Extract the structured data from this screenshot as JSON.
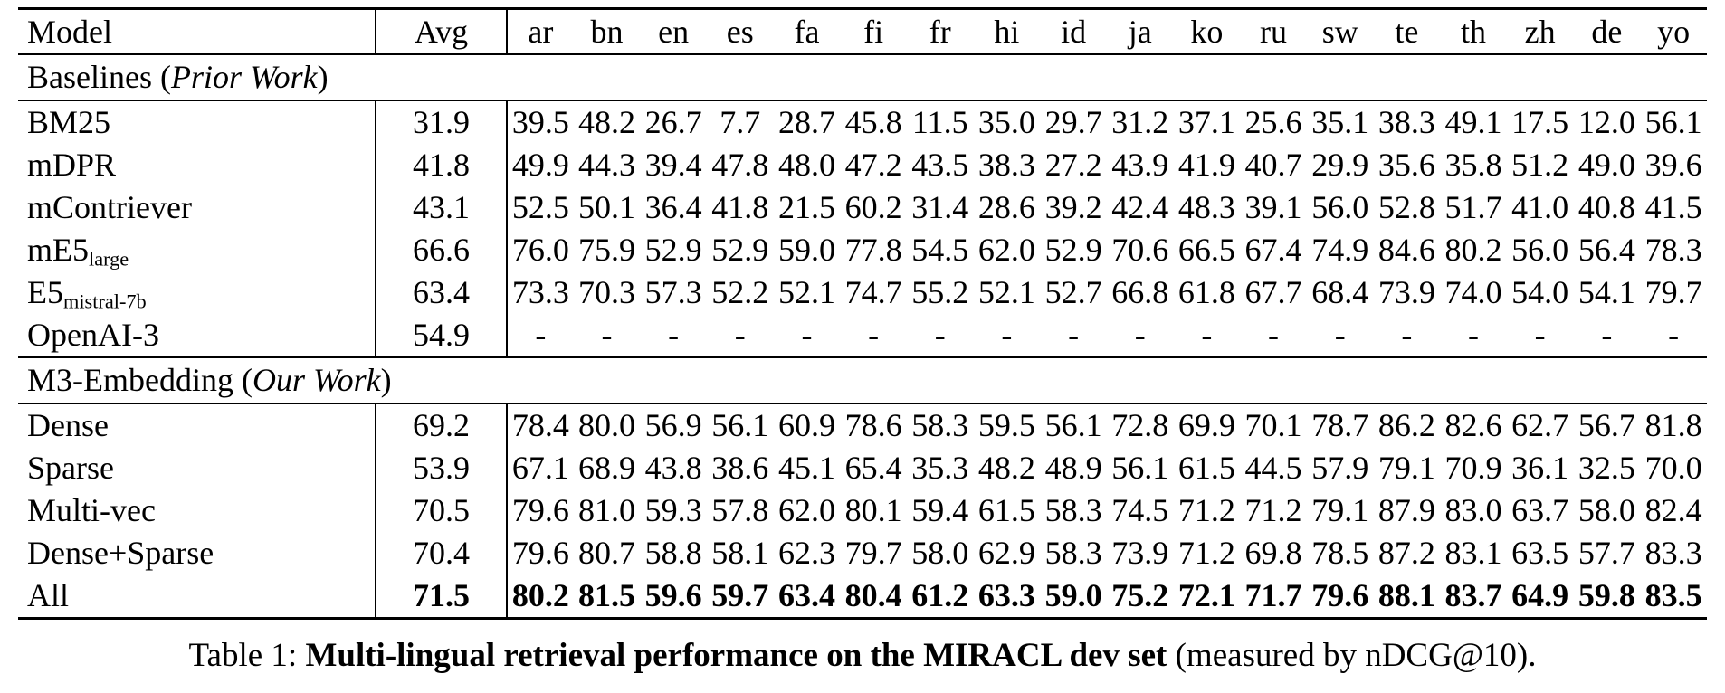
{
  "page": {
    "background": "#ffffff",
    "text_color": "#000000"
  },
  "table": {
    "header": {
      "model": "Model",
      "avg": "Avg",
      "languages": [
        "ar",
        "bn",
        "en",
        "es",
        "fa",
        "fi",
        "fr",
        "hi",
        "id",
        "ja",
        "ko",
        "ru",
        "sw",
        "te",
        "th",
        "zh",
        "de",
        "yo"
      ]
    },
    "sections": [
      {
        "title_prefix": "Baselines (",
        "title_italic": "Prior Work",
        "title_suffix": ")",
        "rows": [
          {
            "model": "BM25",
            "model_sub": "",
            "bold": false,
            "values": [
              "31.9",
              "39.5",
              "48.2",
              "26.7",
              "7.7",
              "28.7",
              "45.8",
              "11.5",
              "35.0",
              "29.7",
              "31.2",
              "37.1",
              "25.6",
              "35.1",
              "38.3",
              "49.1",
              "17.5",
              "12.0",
              "56.1"
            ]
          },
          {
            "model": "mDPR",
            "model_sub": "",
            "bold": false,
            "values": [
              "41.8",
              "49.9",
              "44.3",
              "39.4",
              "47.8",
              "48.0",
              "47.2",
              "43.5",
              "38.3",
              "27.2",
              "43.9",
              "41.9",
              "40.7",
              "29.9",
              "35.6",
              "35.8",
              "51.2",
              "49.0",
              "39.6"
            ]
          },
          {
            "model": "mContriever",
            "model_sub": "",
            "bold": false,
            "values": [
              "43.1",
              "52.5",
              "50.1",
              "36.4",
              "41.8",
              "21.5",
              "60.2",
              "31.4",
              "28.6",
              "39.2",
              "42.4",
              "48.3",
              "39.1",
              "56.0",
              "52.8",
              "51.7",
              "41.0",
              "40.8",
              "41.5"
            ]
          },
          {
            "model": "mE5",
            "model_sub": "large",
            "bold": false,
            "values": [
              "66.6",
              "76.0",
              "75.9",
              "52.9",
              "52.9",
              "59.0",
              "77.8",
              "54.5",
              "62.0",
              "52.9",
              "70.6",
              "66.5",
              "67.4",
              "74.9",
              "84.6",
              "80.2",
              "56.0",
              "56.4",
              "78.3"
            ]
          },
          {
            "model": "E5",
            "model_sub": "mistral-7b",
            "bold": false,
            "values": [
              "63.4",
              "73.3",
              "70.3",
              "57.3",
              "52.2",
              "52.1",
              "74.7",
              "55.2",
              "52.1",
              "52.7",
              "66.8",
              "61.8",
              "67.7",
              "68.4",
              "73.9",
              "74.0",
              "54.0",
              "54.1",
              "79.7"
            ]
          },
          {
            "model": "OpenAI-3",
            "model_sub": "",
            "bold": false,
            "values": [
              "54.9",
              "-",
              "-",
              "-",
              "-",
              "-",
              "-",
              "-",
              "-",
              "-",
              "-",
              "-",
              "-",
              "-",
              "-",
              "-",
              "-",
              "-",
              "-"
            ]
          }
        ]
      },
      {
        "title_prefix": "M3-Embedding (",
        "title_italic": "Our Work",
        "title_suffix": ")",
        "rows": [
          {
            "model": "Dense",
            "model_sub": "",
            "bold": false,
            "values": [
              "69.2",
              "78.4",
              "80.0",
              "56.9",
              "56.1",
              "60.9",
              "78.6",
              "58.3",
              "59.5",
              "56.1",
              "72.8",
              "69.9",
              "70.1",
              "78.7",
              "86.2",
              "82.6",
              "62.7",
              "56.7",
              "81.8"
            ]
          },
          {
            "model": "Sparse",
            "model_sub": "",
            "bold": false,
            "values": [
              "53.9",
              "67.1",
              "68.9",
              "43.8",
              "38.6",
              "45.1",
              "65.4",
              "35.3",
              "48.2",
              "48.9",
              "56.1",
              "61.5",
              "44.5",
              "57.9",
              "79.1",
              "70.9",
              "36.1",
              "32.5",
              "70.0"
            ]
          },
          {
            "model": "Multi-vec",
            "model_sub": "",
            "bold": false,
            "values": [
              "70.5",
              "79.6",
              "81.0",
              "59.3",
              "57.8",
              "62.0",
              "80.1",
              "59.4",
              "61.5",
              "58.3",
              "74.5",
              "71.2",
              "71.2",
              "79.1",
              "87.9",
              "83.0",
              "63.7",
              "58.0",
              "82.4"
            ]
          },
          {
            "model": "Dense+Sparse",
            "model_sub": "",
            "bold": false,
            "values": [
              "70.4",
              "79.6",
              "80.7",
              "58.8",
              "58.1",
              "62.3",
              "79.7",
              "58.0",
              "62.9",
              "58.3",
              "73.9",
              "71.2",
              "69.8",
              "78.5",
              "87.2",
              "83.1",
              "63.5",
              "57.7",
              "83.3"
            ]
          },
          {
            "model": "All",
            "model_sub": "",
            "bold": true,
            "values": [
              "71.5",
              "80.2",
              "81.5",
              "59.6",
              "59.7",
              "63.4",
              "80.4",
              "61.2",
              "63.3",
              "59.0",
              "75.2",
              "72.1",
              "71.7",
              "79.6",
              "88.1",
              "83.7",
              "64.9",
              "59.8",
              "83.5"
            ]
          }
        ]
      }
    ]
  },
  "caption": {
    "prefix": "Table 1: ",
    "bold": "Multi-lingual retrieval performance on the MIRACL dev set",
    "suffix": " (measured by nDCG@10)."
  }
}
